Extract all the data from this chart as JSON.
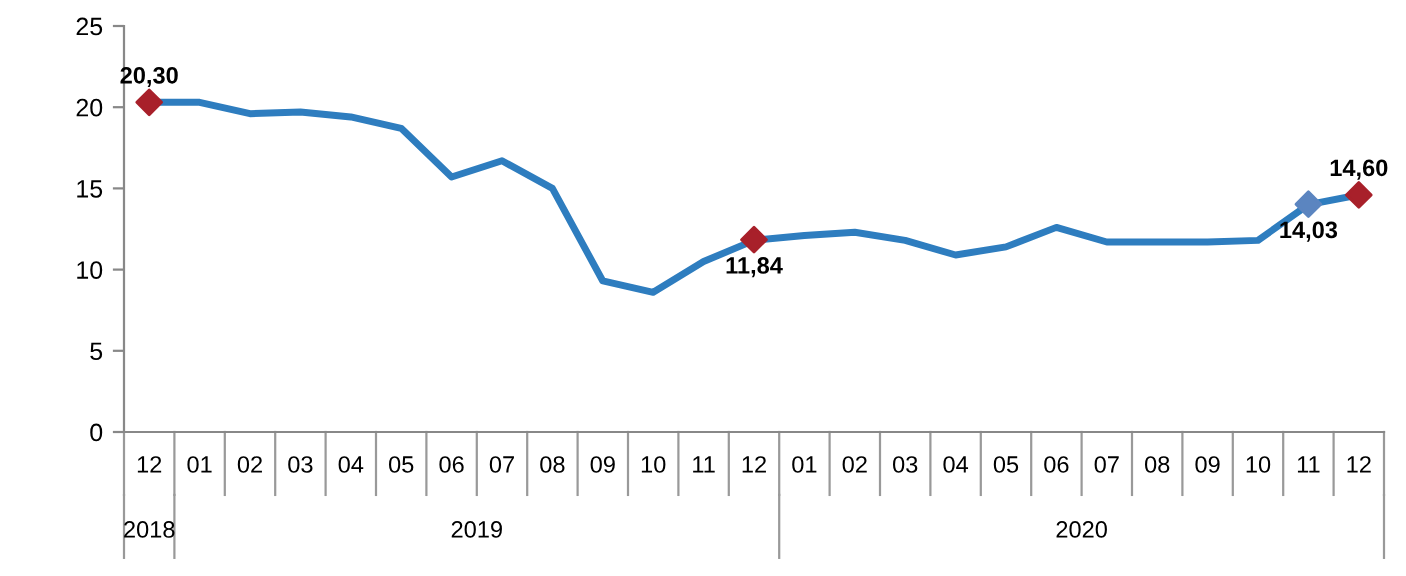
{
  "chart_data": {
    "type": "line",
    "categories": [
      "12",
      "01",
      "02",
      "03",
      "04",
      "05",
      "06",
      "07",
      "08",
      "09",
      "10",
      "11",
      "12",
      "01",
      "02",
      "03",
      "04",
      "05",
      "06",
      "07",
      "08",
      "09",
      "10",
      "11",
      "12"
    ],
    "series": [
      {
        "color": "#2e7dbf",
        "values": [
          20.3,
          20.3,
          19.6,
          19.7,
          19.4,
          18.7,
          15.7,
          16.7,
          15.0,
          9.3,
          8.6,
          10.5,
          11.8,
          12.1,
          12.3,
          11.8,
          10.9,
          11.4,
          12.6,
          11.7,
          11.7,
          11.7,
          11.8,
          14.0,
          14.6
        ]
      },
      {
        "type": "scatter",
        "marker": "diamond",
        "values": [
          20.3,
          null,
          null,
          null,
          null,
          null,
          null,
          null,
          null,
          null,
          null,
          null,
          11.84,
          null,
          null,
          null,
          null,
          null,
          null,
          null,
          null,
          null,
          null,
          14.03,
          14.6
        ],
        "colors": [
          "#a8202a",
          null,
          null,
          null,
          null,
          null,
          null,
          null,
          null,
          null,
          null,
          null,
          "#a8202a",
          null,
          null,
          null,
          null,
          null,
          null,
          null,
          null,
          null,
          null,
          "#5b85c0",
          "#a8202a"
        ],
        "value_labels": [
          "20,30",
          null,
          null,
          null,
          null,
          null,
          null,
          null,
          null,
          null,
          null,
          null,
          "11,84",
          null,
          null,
          null,
          null,
          null,
          null,
          null,
          null,
          null,
          null,
          "14,03",
          "14,60"
        ]
      }
    ],
    "ylim": [
      0,
      25
    ],
    "yticks": [
      0,
      5,
      10,
      15,
      20,
      25
    ],
    "grid": false,
    "legend": false,
    "annotations": [
      "2018",
      "2019",
      "2020"
    ]
  }
}
